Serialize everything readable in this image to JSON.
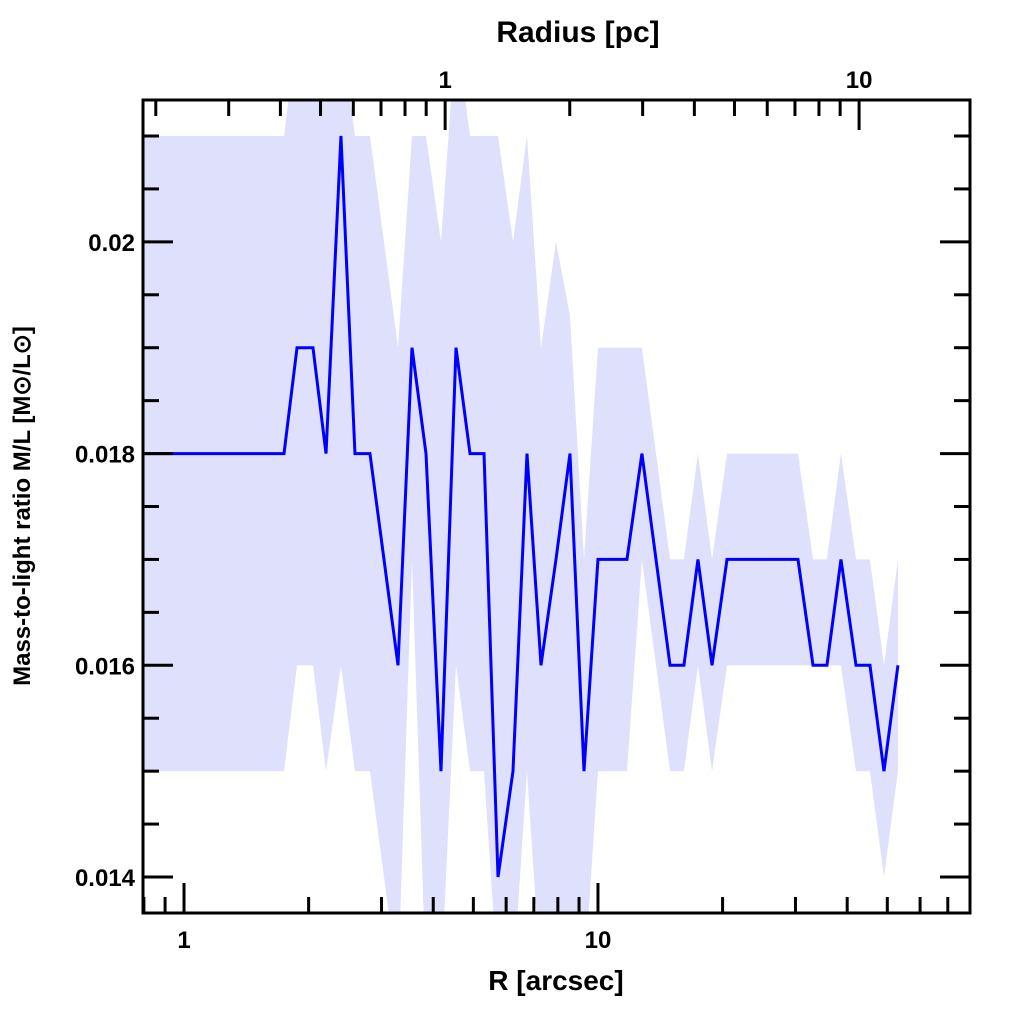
{
  "chart_data": {
    "type": "line",
    "title": "",
    "xlabel": "R [arcsec]",
    "ylabel": "Mass-to-light ratio M/L [M⊙/L⊙]",
    "top_xlabel": "Radius [pc]",
    "xscale": "log",
    "xlim": [
      0.796,
      79.2
    ],
    "ylim": [
      0.01366,
      0.02134
    ],
    "pc_per_arcsec": 0.234,
    "x_tick_labels": [
      {
        "value": 1,
        "label": "1"
      },
      {
        "value": 10,
        "label": "10"
      }
    ],
    "top_tick_labels": [
      {
        "value": 1,
        "label": "1"
      },
      {
        "value": 10,
        "label": "10"
      }
    ],
    "y_tick_labels": [
      {
        "value": 0.014,
        "label": "0.014"
      },
      {
        "value": 0.016,
        "label": "0.016"
      },
      {
        "value": 0.018,
        "label": "0.018"
      },
      {
        "value": 0.02,
        "label": "0.02"
      }
    ],
    "grid": false,
    "colors": {
      "line": "#0000ff",
      "band": "#dfe0fb",
      "axis": "#000000"
    },
    "series": [
      {
        "name": "M/L",
        "x": [
          0.8,
          1.744,
          1.875,
          2.049,
          2.203,
          2.394,
          2.588,
          2.813,
          3.288,
          3.554,
          3.842,
          4.176,
          4.54,
          4.908,
          5.305,
          5.735,
          6.233,
          6.738,
          7.284,
          7.917,
          8.558,
          9.252,
          10.0,
          10.87,
          11.75,
          12.77,
          13.81,
          14.93,
          16.13,
          17.44,
          18.86,
          20.5,
          22.15,
          23.94,
          26.03,
          28.14,
          30.42,
          33.07,
          35.74,
          38.64,
          42.01,
          45.4,
          49.08,
          53.05
        ],
        "y": [
          0.018,
          0.018,
          0.019,
          0.019,
          0.018,
          0.021,
          0.018,
          0.018,
          0.016,
          0.019,
          0.018,
          0.015,
          0.019,
          0.018,
          0.018,
          0.014,
          0.015,
          0.018,
          0.016,
          0.017,
          0.018,
          0.015,
          0.017,
          0.017,
          0.017,
          0.018,
          0.017,
          0.016,
          0.016,
          0.017,
          0.016,
          0.017,
          0.017,
          0.017,
          0.017,
          0.017,
          0.017,
          0.016,
          0.016,
          0.017,
          0.016,
          0.016,
          0.015,
          0.016
        ],
        "upper": [
          0.021,
          0.021,
          0.022,
          0.022,
          0.0213,
          0.022,
          0.021,
          0.021,
          0.019,
          0.021,
          0.021,
          0.02,
          0.022,
          0.021,
          0.021,
          0.021,
          0.02,
          0.021,
          0.019,
          0.02,
          0.0193,
          0.017,
          0.019,
          0.019,
          0.019,
          0.019,
          0.018,
          0.017,
          0.017,
          0.018,
          0.017,
          0.018,
          0.018,
          0.018,
          0.018,
          0.018,
          0.018,
          0.017,
          0.017,
          0.018,
          0.017,
          0.017,
          0.016,
          0.017
        ],
        "lower": [
          0.015,
          0.015,
          0.016,
          0.016,
          0.015,
          0.016,
          0.015,
          0.015,
          0.013,
          0.017,
          0.013,
          0.013,
          0.016,
          0.015,
          0.015,
          0.013,
          0.013,
          0.015,
          0.013,
          0.013,
          0.013,
          0.013,
          0.015,
          0.015,
          0.015,
          0.017,
          0.016,
          0.015,
          0.015,
          0.016,
          0.015,
          0.016,
          0.016,
          0.016,
          0.016,
          0.016,
          0.016,
          0.016,
          0.016,
          0.016,
          0.015,
          0.015,
          0.014,
          0.015
        ]
      }
    ]
  }
}
